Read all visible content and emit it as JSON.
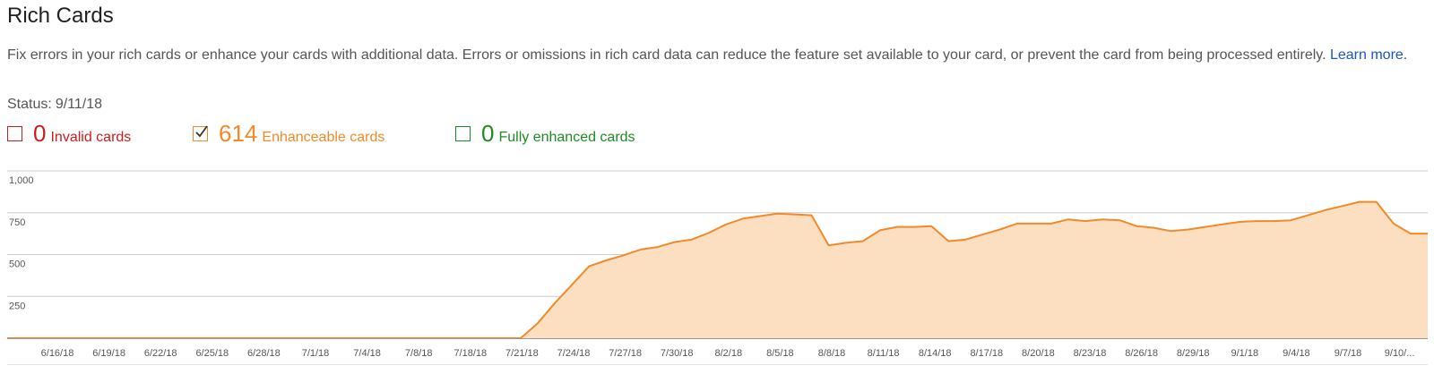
{
  "page": {
    "title": "Rich Cards",
    "description": "Fix errors in your rich cards or enhance your cards with additional data. Errors or omissions in rich card data can reduce the feature set available to your card, or prevent the card from being processed entirely.",
    "learn_more": "Learn more.",
    "status_label": "Status:",
    "status_date": "9/11/18"
  },
  "metrics": [
    {
      "count": "0",
      "label": "Invalid cards",
      "checked": false,
      "color": "#cc1d1d"
    },
    {
      "count": "614",
      "label": "Enhanceable cards",
      "checked": true,
      "color": "#f28a2a"
    },
    {
      "count": "0",
      "label": "Fully enhanced cards",
      "checked": false,
      "color": "#1f8b24"
    }
  ],
  "chart_data": {
    "type": "area",
    "series": [
      {
        "name": "Enhanceable cards",
        "color": "#f28a2a",
        "fill": "#fbdfc0"
      }
    ],
    "ylim": [
      0,
      1000
    ],
    "yticks": [
      "1,000",
      "750",
      "500",
      "250"
    ],
    "ytick_values": [
      1000,
      750,
      500,
      250
    ],
    "xtick_labels": [
      "6/16/18",
      "6/19/18",
      "6/22/18",
      "6/25/18",
      "6/28/18",
      "7/1/18",
      "7/4/18",
      "7/8/18",
      "7/18/18",
      "7/21/18",
      "7/24/18",
      "7/27/18",
      "7/30/18",
      "8/2/18",
      "8/5/18",
      "8/8/18",
      "8/11/18",
      "8/14/18",
      "8/17/18",
      "8/20/18",
      "8/23/18",
      "8/26/18",
      "8/29/18",
      "9/1/18",
      "9/4/18",
      "9/7/18",
      "9/10/..."
    ],
    "values": [
      0,
      0,
      0,
      0,
      0,
      0,
      0,
      0,
      0,
      0,
      0,
      0,
      0,
      0,
      0,
      0,
      0,
      0,
      0,
      0,
      0,
      0,
      0,
      0,
      0,
      0,
      0,
      0,
      0,
      0,
      0,
      90,
      210,
      320,
      430,
      465,
      495,
      530,
      545,
      575,
      590,
      630,
      680,
      715,
      730,
      745,
      740,
      735,
      555,
      570,
      580,
      645,
      665,
      665,
      670,
      580,
      590,
      620,
      650,
      685,
      685,
      685,
      710,
      700,
      710,
      705,
      670,
      660,
      640,
      650,
      665,
      680,
      695,
      700,
      700,
      705,
      735,
      765,
      790,
      815,
      815,
      685,
      625,
      625
    ]
  }
}
